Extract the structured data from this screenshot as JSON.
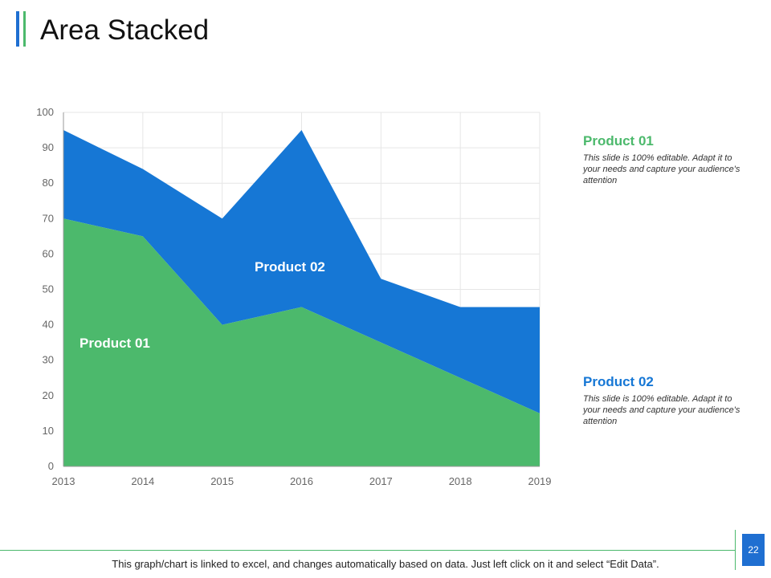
{
  "title": "Area Stacked",
  "colors": {
    "product01": "#4cb96c",
    "product02": "#1677d5",
    "grid": "#e6e6e6",
    "axis": "#666666"
  },
  "chart_data": {
    "type": "area",
    "stacked": true,
    "categories": [
      "2013",
      "2014",
      "2015",
      "2016",
      "2017",
      "2018",
      "2019"
    ],
    "series": [
      {
        "name": "Product 01",
        "values": [
          70,
          65,
          40,
          45,
          35,
          25,
          15
        ]
      },
      {
        "name": "Product 02",
        "values": [
          25,
          19,
          30,
          50,
          18,
          20,
          30
        ]
      }
    ],
    "yticks": [
      "0",
      "10",
      "20",
      "30",
      "40",
      "50",
      "60",
      "70",
      "80",
      "90",
      "100"
    ],
    "ylim": [
      0,
      100
    ],
    "grid": true,
    "in_chart_labels": [
      "Product 01",
      "Product 02"
    ]
  },
  "side": [
    {
      "title": "Product 01",
      "desc": "This slide is 100% editable. Adapt it to your needs and capture your audience's attention"
    },
    {
      "title": "Product 02",
      "desc": "This slide is 100% editable. Adapt it to your needs and capture your audience's attention"
    }
  ],
  "footer": "This graph/chart is linked to excel, and changes automatically based on data. Just left click on it and select “Edit Data”.",
  "page_number": "22"
}
